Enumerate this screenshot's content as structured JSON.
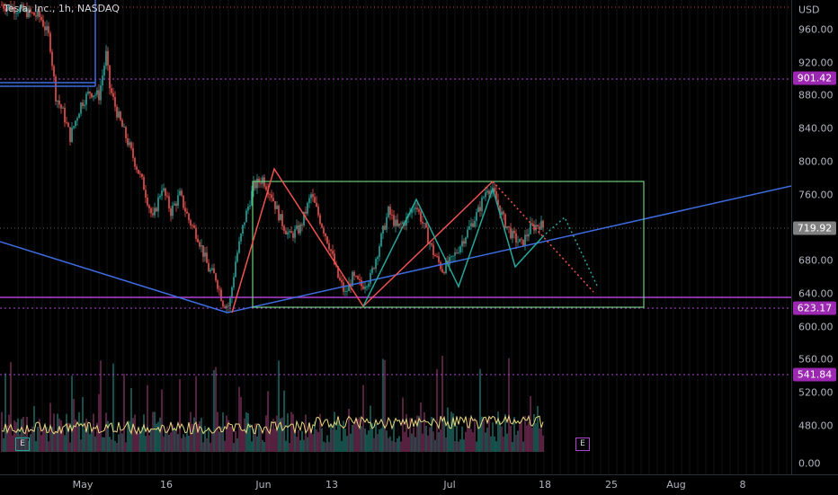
{
  "header": {
    "symbol_title": "Tesla, Inc., 1h, NASDAQ"
  },
  "price_axis": {
    "currency": "USD",
    "ticks": [
      "960.00",
      "920.00",
      "880.00",
      "840.00",
      "800.00",
      "760.00",
      "680.00",
      "640.00",
      "600.00",
      "560.00",
      "520.00",
      "480.00",
      "0.00"
    ],
    "tick_values": [
      960,
      920,
      880,
      840,
      800,
      760,
      680,
      640,
      600,
      560,
      520,
      480,
      0
    ],
    "badges": [
      {
        "label": "901.42",
        "value": 901.42,
        "color": "#9c27b0"
      },
      {
        "label": "719.92",
        "value": 719.92,
        "color": "#808080"
      },
      {
        "label": "623.17",
        "value": 623.17,
        "color": "#9c27b0"
      },
      {
        "label": "541.84",
        "value": 541.84,
        "color": "#9c27b0"
      }
    ]
  },
  "time_axis": {
    "labels": [
      "May",
      "16",
      "Jun",
      "13",
      "Jul",
      "18",
      "25",
      "Aug",
      "8"
    ]
  },
  "markers": {
    "left_event": "E",
    "right_event": "E"
  },
  "colors": {
    "background": "#000000",
    "purple_level": "#b040d0",
    "trend_line": "#3d6be0",
    "rectangle": "#6ccf7a",
    "zigzag_red": "#ef5350",
    "zigzag_teal": "#26a69a",
    "candle_up": "#26a69a",
    "candle_down": "#ef5350",
    "volume_ma": "#e8d87a"
  }
}
